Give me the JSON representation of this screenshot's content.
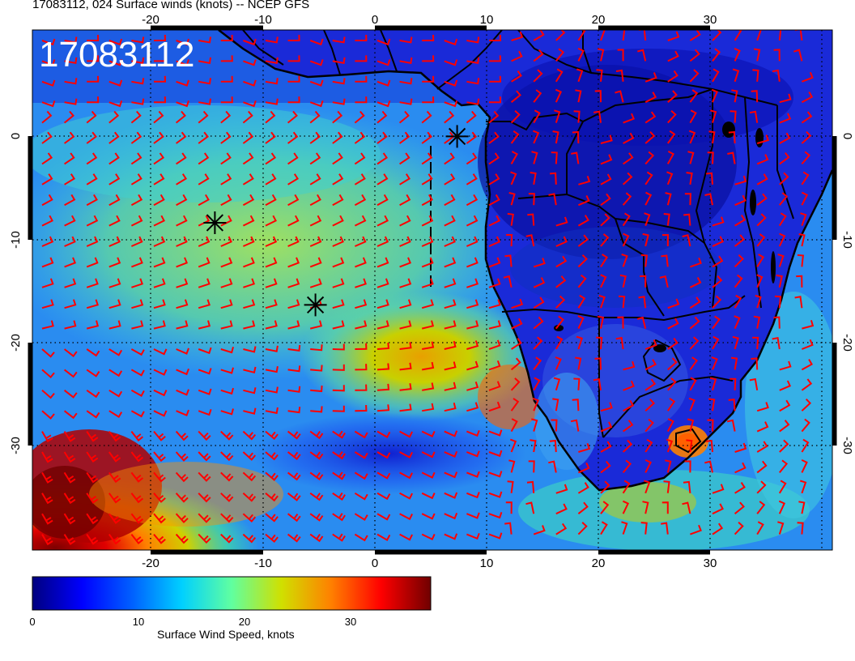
{
  "header": {
    "title": "17083112, 024 Surface winds (knots) -- NCEP GFS"
  },
  "map": {
    "datetime_label": "17083112",
    "lon_ticks": [
      "-20",
      "-10",
      "0",
      "10",
      "20",
      "30"
    ],
    "lat_ticks": [
      "0",
      "-10",
      "-20",
      "-30"
    ],
    "lon_range": [
      -30,
      40
    ],
    "lat_range": [
      -40,
      10
    ],
    "barb_color": "#ff0000",
    "storm_markers": [
      {
        "lon": -14.6,
        "lat": -8.3
      },
      {
        "lon": -5.8,
        "lat": -16.2
      },
      {
        "lon": 6.6,
        "lat": 0.0
      }
    ]
  },
  "colorbar": {
    "title": "Surface Wind Speed, knots",
    "ticks": [
      "0",
      "10",
      "20",
      "30"
    ],
    "colors": [
      "#00007f",
      "#0000ff",
      "#0080ff",
      "#00e0ff",
      "#80ff80",
      "#d0d000",
      "#ff8000",
      "#ff0000",
      "#800000"
    ]
  }
}
